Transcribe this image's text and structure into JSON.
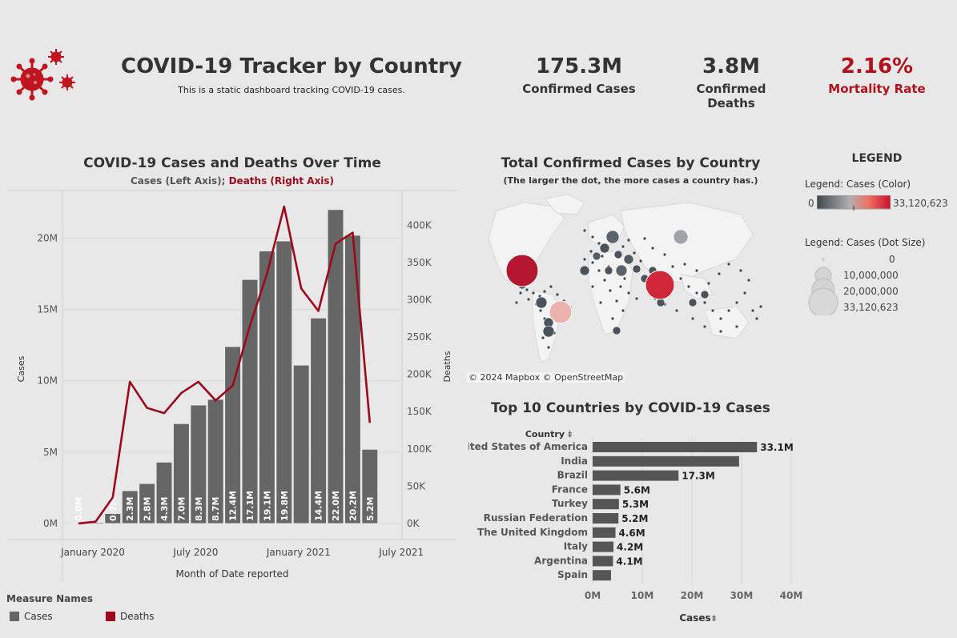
{
  "header": {
    "title": "COVID-19 Tracker by Country",
    "subtitle": "This is a static dashboard tracking COVID-19 cases.",
    "icon": "virus-icon"
  },
  "kpis": {
    "cases": {
      "value": "175.3M",
      "label": "Confirmed Cases"
    },
    "deaths": {
      "value": "3.8M",
      "label": "Confirmed Deaths"
    },
    "rate": {
      "value": "2.16%",
      "label": "Mortality Rate",
      "color": "#b3101c"
    }
  },
  "colors": {
    "cases": "#666666",
    "deaths": "#9b0a1b",
    "background": "#e8e8e8"
  },
  "time_chart": {
    "title": "COVID-19 Cases and Deaths Over Time",
    "subtitle_cases": "Cases (Left Axis); ",
    "subtitle_deaths": "Deaths (Right Axis)",
    "legend_title": "Measure Names",
    "legend_items": [
      {
        "label": "Cases",
        "color": "#666666"
      },
      {
        "label": "Deaths",
        "color": "#9b0a1b"
      }
    ]
  },
  "chart_data": [
    {
      "type": "bar",
      "title": "COVID-19 Cases and Deaths Over Time",
      "xlabel": "Month of Date reported",
      "ylabel": "Cases",
      "y2label": "Deaths",
      "ylim": [
        0,
        23000000
      ],
      "y2lim": [
        0,
        440000
      ],
      "months": [
        "2020-01",
        "2020-02",
        "2020-03",
        "2020-04",
        "2020-05",
        "2020-06",
        "2020-07",
        "2020-08",
        "2020-09",
        "2020-10",
        "2020-11",
        "2020-12",
        "2021-01",
        "2021-02",
        "2021-03",
        "2021-04",
        "2021-05",
        "2021-06"
      ],
      "x_ticks": [
        {
          "month": "2020-01",
          "label": "January 2020"
        },
        {
          "month": "2020-07",
          "label": "July 2020"
        },
        {
          "month": "2021-01",
          "label": "January 2021"
        },
        {
          "month": "2021-07",
          "label": "July 2021"
        }
      ],
      "y_ticks": [
        {
          "value": 0,
          "label": "0M"
        },
        {
          "value": 5000000,
          "label": "5M"
        },
        {
          "value": 10000000,
          "label": "10M"
        },
        {
          "value": 15000000,
          "label": "15M"
        },
        {
          "value": 20000000,
          "label": "20M"
        }
      ],
      "y2_ticks": [
        {
          "value": 0,
          "label": "0K"
        },
        {
          "value": 50000,
          "label": "50K"
        },
        {
          "value": 100000,
          "label": "100K"
        },
        {
          "value": 150000,
          "label": "150K"
        },
        {
          "value": 200000,
          "label": "200K"
        },
        {
          "value": 250000,
          "label": "250K"
        },
        {
          "value": 300000,
          "label": "300K"
        },
        {
          "value": 350000,
          "label": "350K"
        },
        {
          "value": 400000,
          "label": "400K"
        }
      ],
      "series": [
        {
          "name": "Cases",
          "kind": "bar",
          "values": [
            10000,
            80000,
            700000,
            2300000,
            2800000,
            4300000,
            7000000,
            8300000,
            8700000,
            12400000,
            17100000,
            19100000,
            19800000,
            11100000,
            14400000,
            22000000,
            20200000,
            5200000
          ],
          "labels": [
            "0.0M",
            "",
            "0.7M",
            "2.3M",
            "2.8M",
            "4.3M",
            "7.0M",
            "8.3M",
            "8.7M",
            "12.4M",
            "17.1M",
            "19.1M",
            "19.8M",
            "",
            "14.4M",
            "22.0M",
            "20.2M",
            "5.2M"
          ]
        },
        {
          "name": "Deaths",
          "kind": "line",
          "values": [
            100,
            2500,
            35000,
            190000,
            155000,
            148000,
            175000,
            190000,
            165000,
            185000,
            265000,
            335000,
            425000,
            315000,
            285000,
            375000,
            390000,
            135000
          ]
        }
      ]
    },
    {
      "type": "bar",
      "title": "Top 10 Countries by COVID-19 Cases",
      "orientation": "horizontal",
      "ylabel": "Country",
      "xlabel": "Cases",
      "xlim": [
        0,
        40000000
      ],
      "x_ticks": [
        {
          "value": 0,
          "label": "0M"
        },
        {
          "value": 10000000,
          "label": "10M"
        },
        {
          "value": 20000000,
          "label": "20M"
        },
        {
          "value": 30000000,
          "label": "30M"
        },
        {
          "value": 40000000,
          "label": "40M"
        }
      ],
      "categories": [
        "United States of America",
        "India",
        "Brazil",
        "France",
        "Turkey",
        "Russian Federation",
        "The United Kingdom",
        "Italy",
        "Argentina",
        "Spain"
      ],
      "values": [
        33100000,
        29500000,
        17300000,
        5600000,
        5300000,
        5200000,
        4600000,
        4200000,
        4100000,
        3700000
      ],
      "labels": [
        "33.1M",
        "",
        "17.3M",
        "5.6M",
        "5.3M",
        "5.2M",
        "4.6M",
        "4.2M",
        "4.1M",
        ""
      ]
    }
  ],
  "map": {
    "title": "Total Confirmed Cases by Country",
    "subtitle": "(The larger the dot, the more cases a country has.)",
    "attribution": "© 2024 Mapbox  © OpenStreetMap"
  },
  "legend": {
    "title": "LEGEND",
    "color_label": "Legend: Cases (Color)",
    "color_min": "0",
    "color_max": "33,120,623",
    "size_label": "Legend: Cases (Dot Size)",
    "sizes": [
      "0",
      "10,000,000",
      "20,000,000",
      "33,120,623"
    ]
  },
  "bar_chart": {
    "title": "Top 10 Countries by COVID-19 Cases",
    "country_header": "Country",
    "axis_title": "Cases"
  }
}
